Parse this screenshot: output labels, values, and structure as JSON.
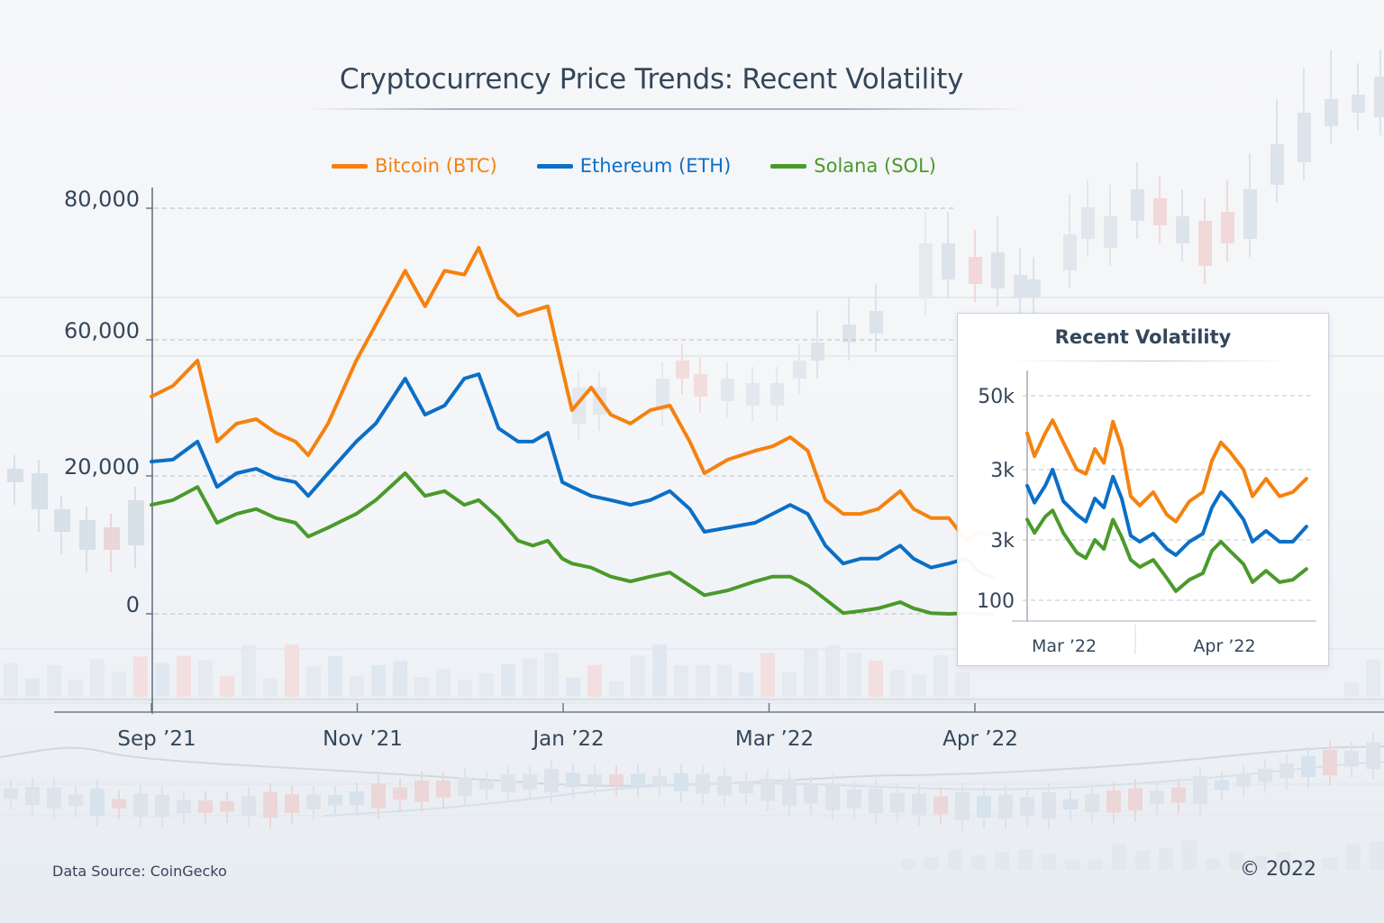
{
  "title": "Cryptocurrency Price Trends: Recent Volatility",
  "colors": {
    "btc": "#f5820f",
    "eth": "#0b6fc6",
    "sol": "#4a9a2a",
    "text": "#34465a",
    "grid": "#b8bec8"
  },
  "legend": [
    {
      "label": "Bitcoin (BTC)",
      "color": "#f5820f"
    },
    {
      "label": "Ethereum (ETH)",
      "color": "#0b6fc6"
    },
    {
      "label": "Solana (SOL)",
      "color": "#4a9a2a"
    }
  ],
  "footer": {
    "source": "Data Source: CoinGecko",
    "copyright": "© 2022"
  },
  "chart_data": [
    {
      "type": "line",
      "title": "Cryptocurrency Price Trends: Recent Volatility",
      "xlabel": "",
      "ylabel": "",
      "x_ticks": [
        "Sep ’21",
        "Nov ’21",
        "Jan ’22",
        "Mar ’22",
        "Apr ’22"
      ],
      "y_ticks": [
        {
          "label": "80,000",
          "value": 80000
        },
        {
          "label": "60,000",
          "value": 60000
        },
        {
          "label": "20,000",
          "value": 20000
        },
        {
          "label": "0",
          "value": 0
        }
      ],
      "y_scale_note": "tick labels are evenly spaced on screen (0, 20,000, 60,000, 80,000)",
      "grid": "horizontal dashed",
      "legend_position": "top-center",
      "x_positions": [
        0,
        0.105,
        0.224,
        0.319,
        0.414,
        0.509,
        0.604,
        0.7,
        0.762,
        0.858,
        0.995,
        1.09,
        1.233,
        1.329,
        1.424,
        1.52,
        1.59,
        1.686,
        1.781,
        1.853,
        1.925,
        1.996,
        2.043,
        2.136,
        2.231,
        2.327,
        2.423,
        2.518,
        2.615,
        2.686,
        2.8,
        2.932,
        3.017,
        3.103,
        3.188,
        3.274,
        3.36,
        3.445,
        3.53,
        3.637,
        3.702,
        3.787,
        3.873,
        3.958,
        4.022,
        4.086
      ],
      "x_positions_note": "in units of tick index (0 = Sep ’21, 1 = Nov ’21, 2 = Jan ’22, 3 = Mar ’22, 4 = Apr ’22)",
      "series": [
        {
          "name": "Bitcoin (BTC)",
          "color": "#f5820f",
          "values": [
            43300,
            46500,
            53900,
            30100,
            35400,
            36700,
            32700,
            30100,
            26100,
            35400,
            53900,
            62300,
            70500,
            65100,
            70500,
            69900,
            74000,
            66400,
            63700,
            64400,
            65100,
            51300,
            39300,
            46000,
            38000,
            35400,
            39300,
            40700,
            30100,
            20800,
            24800,
            27400,
            28700,
            31400,
            27400,
            16500,
            14500,
            14500,
            15200,
            17800,
            15200,
            13900,
            13900,
            10600,
            11900,
            11200
          ]
        },
        {
          "name": "Ethereum (ETH)",
          "color": "#0b6fc6",
          "values": [
            24200,
            24800,
            30100,
            18400,
            20800,
            22100,
            19700,
            19100,
            17100,
            20800,
            30100,
            35400,
            48600,
            38000,
            40700,
            48600,
            49900,
            34000,
            30100,
            30100,
            32700,
            19100,
            18400,
            17100,
            16500,
            15800,
            16500,
            17800,
            15200,
            11900,
            12500,
            13200,
            14500,
            15800,
            14500,
            9900,
            7300,
            8000,
            8000,
            9900,
            8000,
            6700,
            7300,
            8000,
            6000,
            5400
          ]
        },
        {
          "name": "Solana (SOL)",
          "color": "#4a9a2a",
          "values": [
            15800,
            16500,
            18400,
            13200,
            14500,
            15200,
            13900,
            13200,
            11200,
            12500,
            14500,
            16500,
            20800,
            17100,
            17800,
            15800,
            16500,
            13900,
            10600,
            9900,
            10600,
            8000,
            7300,
            6700,
            5400,
            4700,
            5400,
            6000,
            4100,
            2700,
            3400,
            4700,
            5400,
            5400,
            4100,
            2100,
            100,
            400,
            800,
            1700,
            800,
            100,
            0,
            100,
            0,
            0
          ]
        }
      ]
    },
    {
      "type": "line",
      "title": "Recent Volatility",
      "x_ticks": [
        "Mar ’22",
        "Apr ’22"
      ],
      "y_ticks": [
        "100",
        "3k",
        "3k",
        "50k"
      ],
      "y_scale_note": "values given as position on the tick-index scale (0 = '100', 1 = '3k', 2 = '3k', 3 = '50k')",
      "grid": "horizontal dashed",
      "x_positions": [
        0,
        0.026,
        0.064,
        0.09,
        0.128,
        0.176,
        0.208,
        0.24,
        0.272,
        0.304,
        0.335,
        0.367,
        0.399,
        0.447,
        0.495,
        0.527,
        0.575,
        0.623,
        0.655,
        0.687,
        0.719,
        0.767,
        0.799,
        0.847,
        0.895,
        0.942,
        0.99
      ],
      "x_positions_note": "fraction of inset time span (March–April 2022)",
      "series": [
        {
          "name": "Bitcoin (BTC)",
          "color": "#f5820f",
          "values": [
            2.49,
            2.18,
            2.49,
            2.67,
            2.37,
            2.0,
            1.94,
            2.28,
            2.09,
            2.65,
            2.3,
            1.62,
            1.49,
            1.68,
            1.36,
            1.26,
            1.55,
            1.68,
            2.12,
            2.37,
            2.24,
            2.0,
            1.62,
            1.87,
            1.62,
            1.68,
            1.87
          ]
        },
        {
          "name": "Ethereum (ETH)",
          "color": "#0b6fc6",
          "values": [
            1.77,
            1.53,
            1.77,
            2.0,
            1.55,
            1.36,
            1.26,
            1.59,
            1.46,
            1.9,
            1.59,
            1.06,
            0.97,
            1.09,
            0.85,
            0.75,
            0.97,
            1.09,
            1.46,
            1.68,
            1.55,
            1.29,
            0.97,
            1.13,
            0.97,
            0.97,
            1.19
          ]
        },
        {
          "name": "Solana (SOL)",
          "color": "#4a9a2a",
          "values": [
            1.29,
            1.1,
            1.33,
            1.42,
            1.1,
            0.79,
            0.7,
            1.0,
            0.85,
            1.29,
            1.04,
            0.67,
            0.55,
            0.67,
            0.37,
            0.15,
            0.34,
            0.45,
            0.82,
            0.97,
            0.82,
            0.6,
            0.3,
            0.49,
            0.3,
            0.34,
            0.52
          ]
        }
      ]
    }
  ]
}
